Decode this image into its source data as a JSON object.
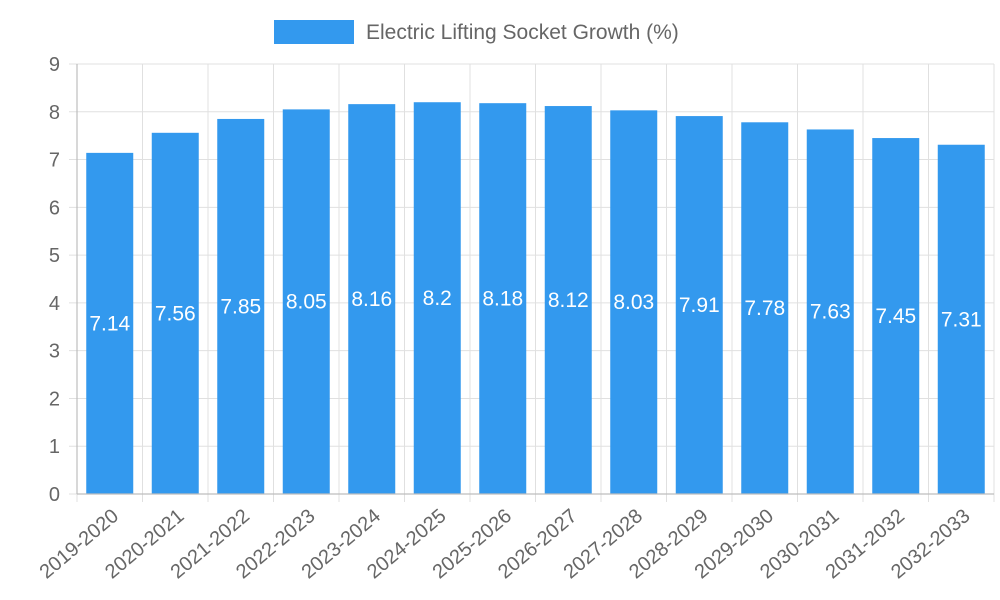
{
  "chart_data": {
    "type": "bar",
    "title": "",
    "xlabel": "",
    "ylabel": "",
    "ylim": [
      0,
      9
    ],
    "yticks": [
      0,
      1,
      2,
      3,
      4,
      5,
      6,
      7,
      8,
      9
    ],
    "legend_position": "top-center",
    "grid": true,
    "categories": [
      "2019-2020",
      "2020-2021",
      "2021-2022",
      "2022-2023",
      "2023-2024",
      "2024-2025",
      "2025-2026",
      "2026-2027",
      "2027-2028",
      "2028-2029",
      "2029-2030",
      "2030-2031",
      "2031-2032",
      "2032-2033"
    ],
    "series": [
      {
        "name": "Electric Lifting Socket Growth (%)",
        "color": "#3399ee",
        "values": [
          7.14,
          7.56,
          7.85,
          8.05,
          8.16,
          8.2,
          8.18,
          8.12,
          8.03,
          7.91,
          7.78,
          7.63,
          7.45,
          7.31
        ]
      }
    ]
  }
}
